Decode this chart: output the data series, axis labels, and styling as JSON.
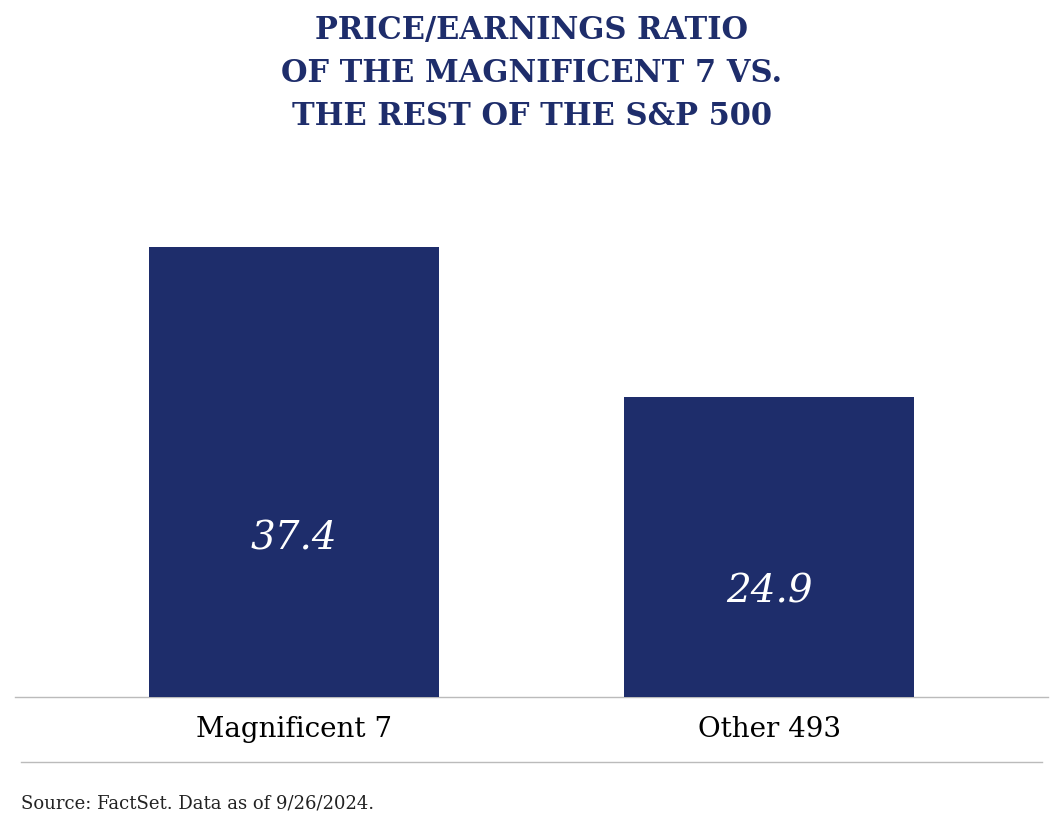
{
  "categories": [
    "Magnificent 7",
    "Other 493"
  ],
  "values": [
    37.4,
    24.9
  ],
  "bar_color": "#1e2d6b",
  "bar_width": 0.28,
  "title_lines": [
    "PRICE/EARNINGS RATIO",
    "OF THE MAGNIFICENT 7 VS.",
    "THE REST OF THE S&P 500"
  ],
  "title_color": "#1e2d6b",
  "title_fontsize": 22,
  "label_fontsize": 20,
  "value_fontsize": 28,
  "value_color": "#ffffff",
  "source_text": "Source: FactSet. Data as of 9/26/2024.",
  "source_fontsize": 13,
  "background_color": "#ffffff",
  "ylim": [
    0,
    45
  ],
  "bar_positions": [
    0.27,
    0.73
  ]
}
